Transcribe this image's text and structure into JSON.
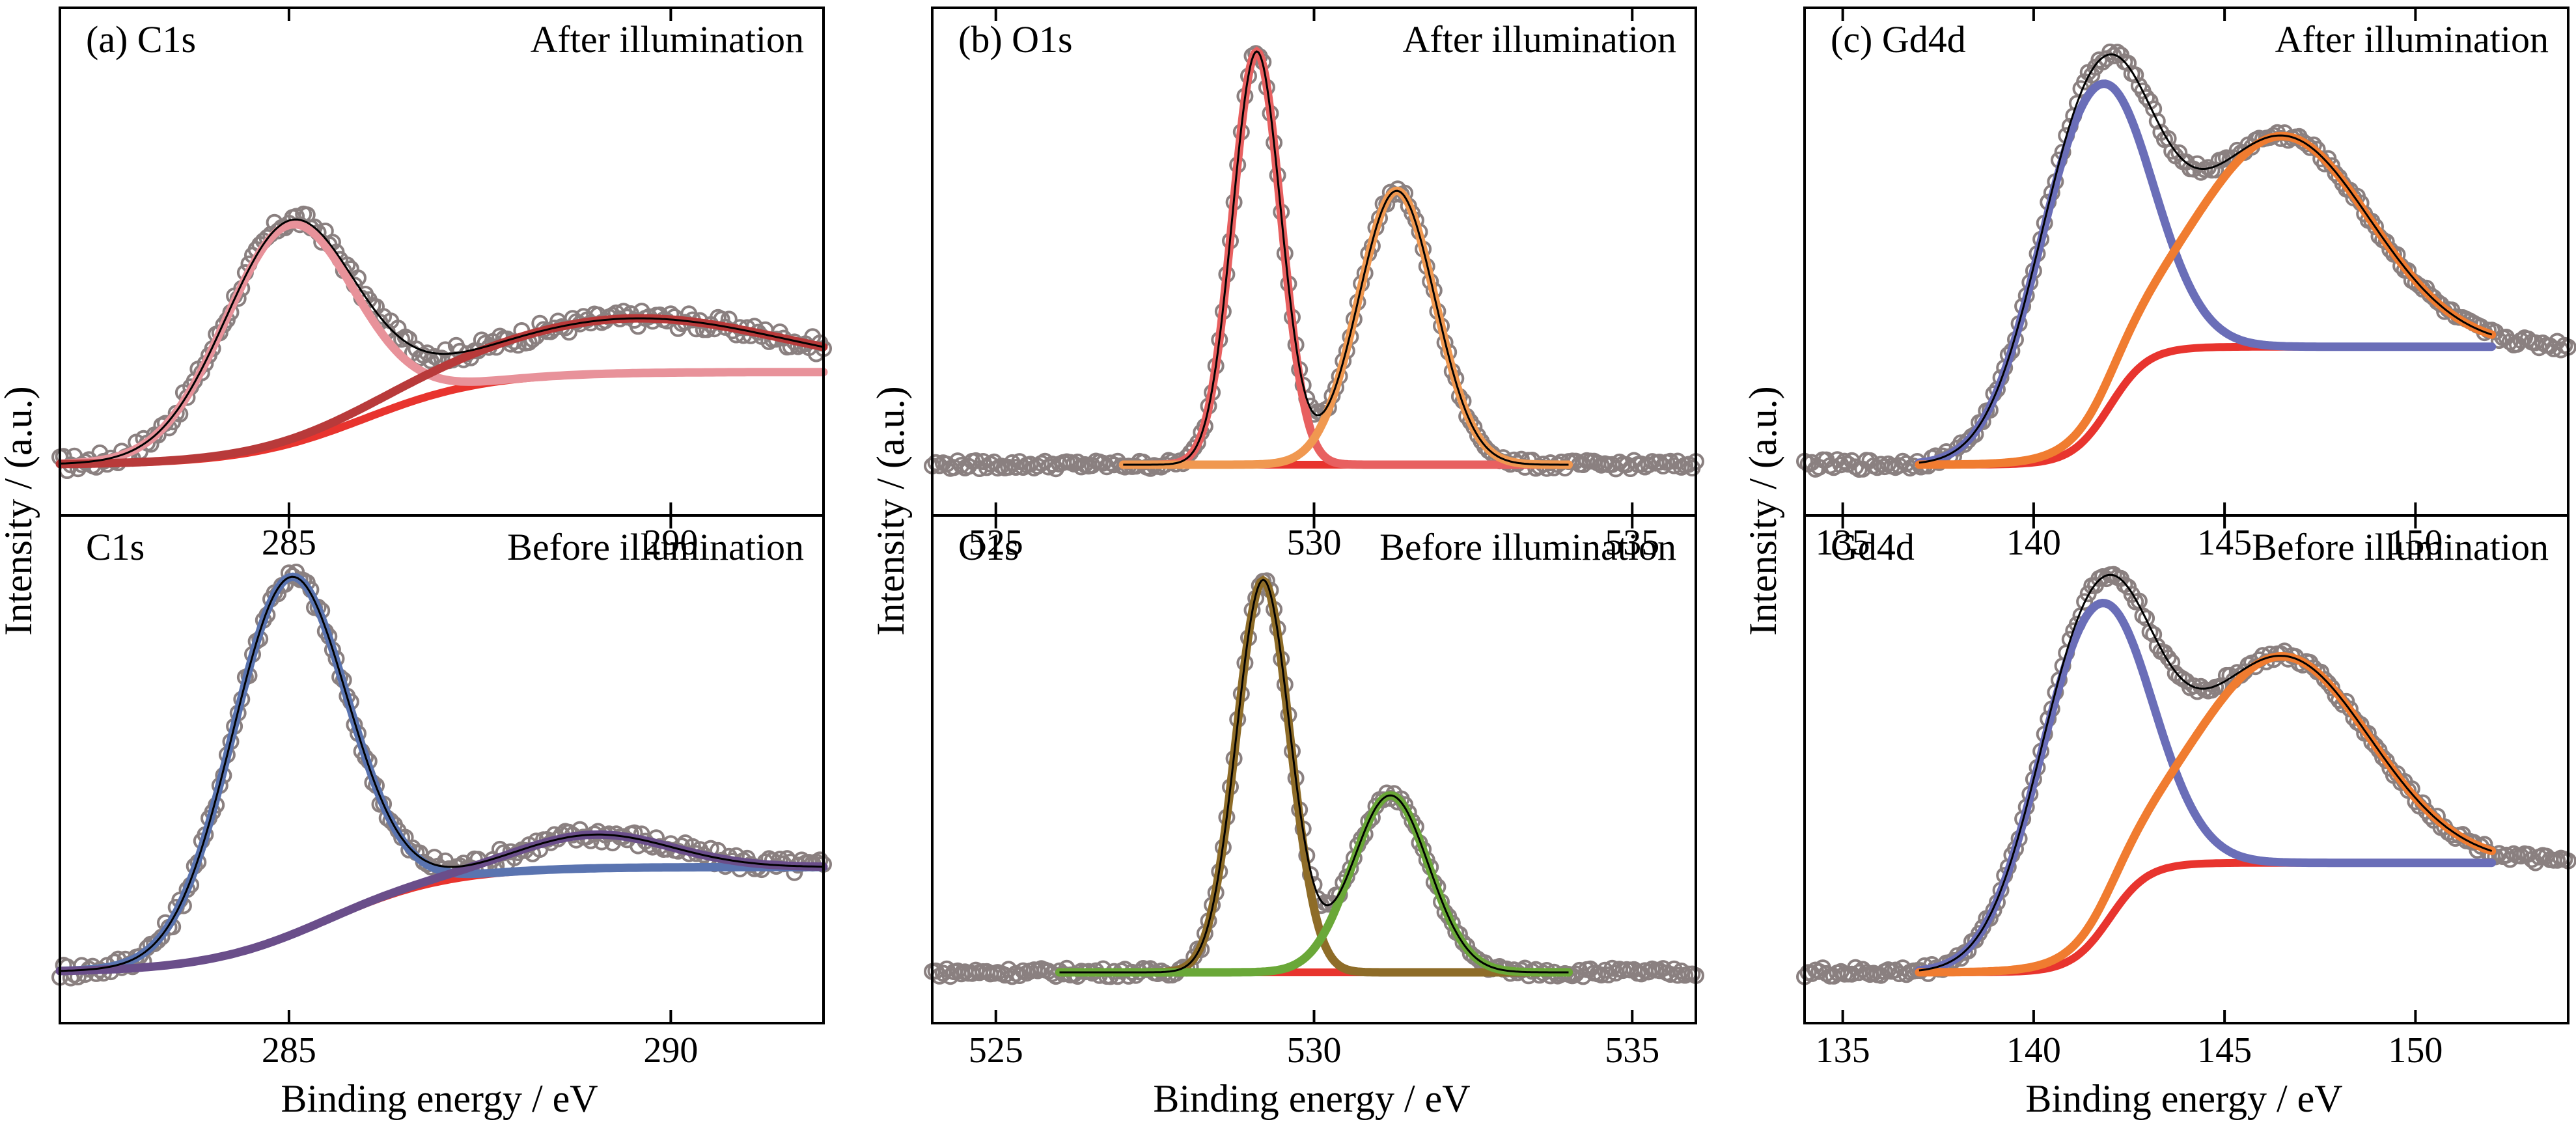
{
  "figure": {
    "y_axis_label": "Intensity / (a.u.)",
    "x_axis_label": "Binding energy / eV"
  },
  "chart_data": [
    {
      "type": "scatter",
      "panel": "(a) C1s",
      "label": "(a) C1s",
      "condition": "After illumination",
      "xticks": [
        285,
        290
      ],
      "xlim": [
        282,
        292
      ],
      "ylim": [
        0,
        1
      ],
      "peaks": [
        {
          "center": 285.0,
          "height": 0.52,
          "width": 0.85,
          "color": "#e8929a"
        },
        {
          "center": 289.5,
          "height": 0.13,
          "width": 2.0,
          "color": "#b83a3a"
        }
      ],
      "background": {
        "color": "#e8342e",
        "start": 0.0,
        "end": 0.22,
        "mid": 286.0,
        "k": 0.8
      },
      "fit_range": [
        282.0,
        292.0
      ],
      "data_range": [
        282.0,
        292.0
      ],
      "noise": 0.02
    },
    {
      "type": "scatter",
      "panel": "C1s",
      "label": "C1s",
      "condition": "Before illumination",
      "xticks": [
        285,
        290
      ],
      "xlim": [
        282,
        292
      ],
      "ylim": [
        0,
        1
      ],
      "peaks": [
        {
          "center": 285.0,
          "height": 0.85,
          "width": 0.75,
          "color": "#5a74b0"
        },
        {
          "center": 289.0,
          "height": 0.08,
          "width": 1.0,
          "color": "#6a4e8a"
        }
      ],
      "background": {
        "color": "#e8342e",
        "start": 0.0,
        "end": 0.25,
        "mid": 285.5,
        "k": 0.8
      },
      "fit_range": [
        282.0,
        292.0
      ],
      "data_range": [
        282.0,
        292.0
      ],
      "noise": 0.02
    },
    {
      "type": "scatter",
      "panel": "(b) O1s",
      "label": "(b) O1s",
      "condition": "After illumination",
      "xticks": [
        525,
        530,
        535
      ],
      "xlim": [
        524,
        536
      ],
      "ylim": [
        0,
        1
      ],
      "peaks": [
        {
          "center": 529.1,
          "height": 0.98,
          "width": 0.38,
          "color": "#e86060"
        },
        {
          "center": 531.3,
          "height": 0.65,
          "width": 0.6,
          "color": "#f09850"
        }
      ],
      "background": {
        "color": "#e8342e",
        "start": 0.0,
        "end": 0.0,
        "mid": 530.0,
        "k": 1.0
      },
      "fit_range": [
        527.0,
        534.0
      ],
      "data_range": [
        524.0,
        536.0
      ],
      "noise": 0.01
    },
    {
      "type": "scatter",
      "panel": "O1s",
      "label": "O1s",
      "condition": "Before illumination",
      "xticks": [
        525,
        530,
        535
      ],
      "xlim": [
        524,
        536
      ],
      "ylim": [
        0,
        1
      ],
      "peaks": [
        {
          "center": 529.2,
          "height": 0.93,
          "width": 0.42,
          "color": "#8e6c28"
        },
        {
          "center": 531.2,
          "height": 0.42,
          "width": 0.6,
          "color": "#6aa838"
        }
      ],
      "background": {
        "color": "#e8342e",
        "start": 0.0,
        "end": 0.0,
        "mid": 530.0,
        "k": 1.0
      },
      "fit_range": [
        526.0,
        534.0
      ],
      "data_range": [
        524.0,
        536.0
      ],
      "noise": 0.01
    },
    {
      "type": "scatter",
      "panel": "(c) Gd4d",
      "label": "(c) Gd4d",
      "condition": "After illumination",
      "xticks": [
        135,
        140,
        145,
        150
      ],
      "xlim": [
        134,
        154
      ],
      "ylim": [
        0,
        1
      ],
      "peaks": [
        {
          "center": 141.5,
          "height": 0.81,
          "width": 1.4,
          "color": "#6a6eb8"
        },
        {
          "center": 146.5,
          "height": 0.5,
          "width": 2.3,
          "color": "#f07c30"
        }
      ],
      "background": {
        "color": "#e8342e",
        "start": 0.0,
        "end": 0.28,
        "mid": 142.0,
        "k": 0.5
      },
      "fit_range": [
        137.0,
        152.0
      ],
      "data_range": [
        134.0,
        154.0
      ],
      "noise": 0.012
    },
    {
      "type": "scatter",
      "panel": "Gd4d",
      "label": "Gd4d",
      "condition": "Before illumination",
      "xticks": [
        135,
        140,
        145,
        150
      ],
      "xlim": [
        134,
        154
      ],
      "ylim": [
        0,
        1
      ],
      "peaks": [
        {
          "center": 141.5,
          "height": 0.79,
          "width": 1.4,
          "color": "#6a6eb8"
        },
        {
          "center": 146.5,
          "height": 0.49,
          "width": 2.3,
          "color": "#f07c30"
        }
      ],
      "background": {
        "color": "#e8342e",
        "start": 0.0,
        "end": 0.26,
        "mid": 142.0,
        "k": 0.5
      },
      "fit_range": [
        137.0,
        152.0
      ],
      "data_range": [
        134.0,
        154.0
      ],
      "noise": 0.012
    }
  ]
}
